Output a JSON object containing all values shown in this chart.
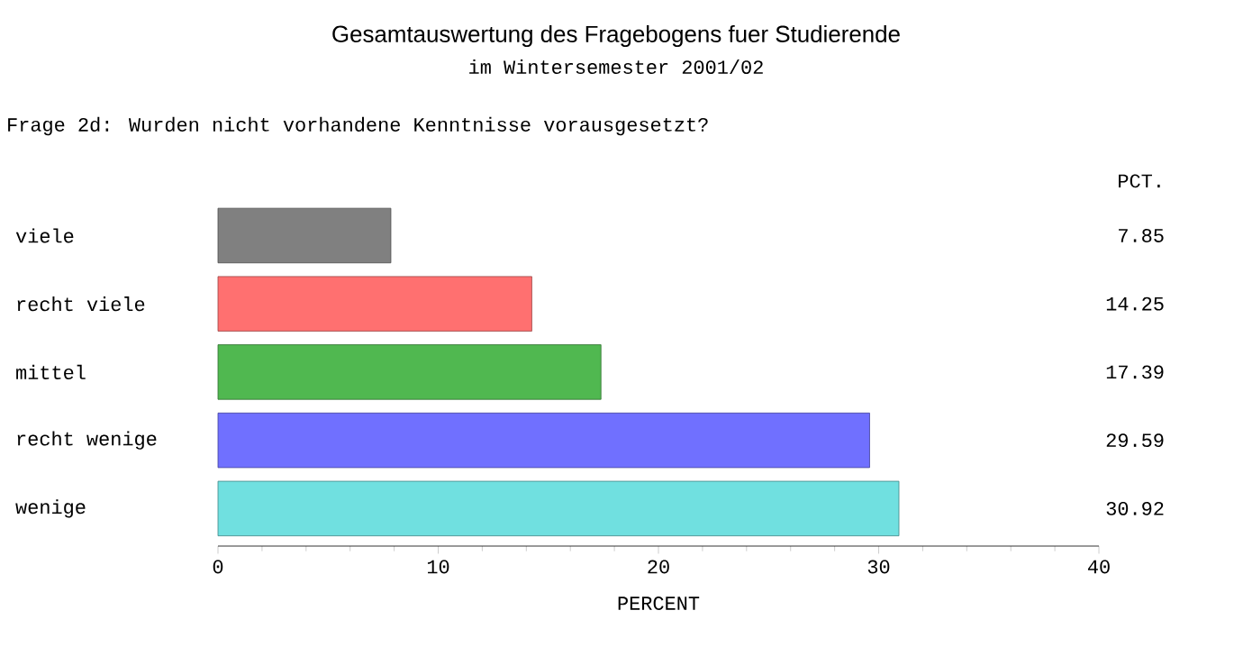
{
  "chart_data": {
    "type": "bar",
    "orientation": "horizontal",
    "title": "Gesamtauswertung des Fragebogens fuer Studierende",
    "subtitle": "im Wintersemester 2001/02",
    "annotations": [
      "Frage 2d: Wurden nicht vorhandene Kenntnisse vorausgesetzt?",
      "PCT."
    ],
    "categories": [
      "viele",
      "recht viele",
      "mittel",
      "recht wenige",
      "wenige"
    ],
    "values": [
      7.85,
      14.25,
      17.39,
      29.59,
      30.92
    ],
    "colors": [
      "#808080",
      "#ff7070",
      "#50b850",
      "#7070ff",
      "#70e0e0"
    ],
    "xlabel": "PERCENT",
    "xlim": [
      0,
      40
    ],
    "xticks": [
      0,
      10,
      20,
      30,
      40
    ],
    "data_labels": true,
    "grid": false
  }
}
